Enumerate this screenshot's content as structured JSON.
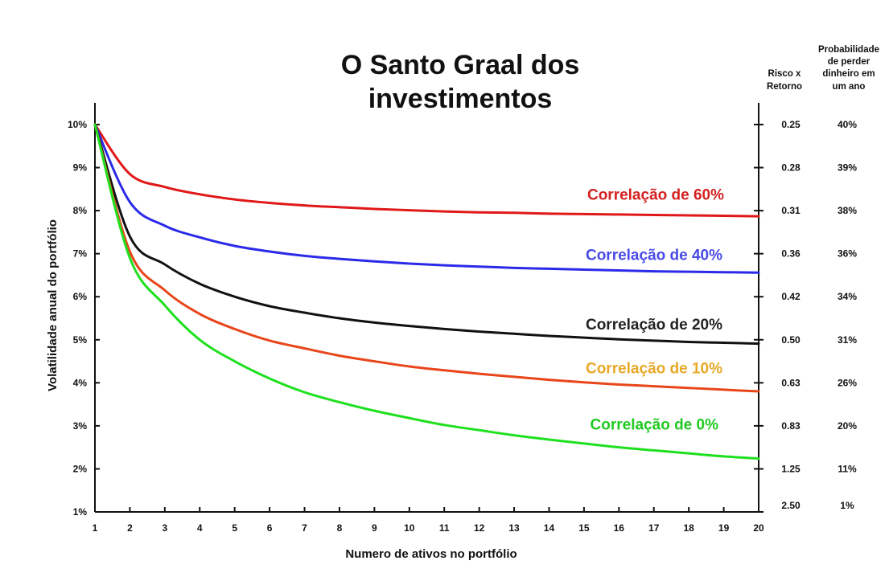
{
  "chart_data": {
    "type": "line",
    "title_lines": [
      "O Santo Graal dos",
      "investimentos"
    ],
    "xlabel": "Numero de ativos no portfólio",
    "ylabel": "Volatilidade anual do portfólio",
    "x": [
      1,
      2,
      3,
      4,
      5,
      6,
      7,
      8,
      9,
      10,
      11,
      12,
      13,
      14,
      15,
      16,
      17,
      18,
      19,
      20
    ],
    "x_tick_labels": [
      "1",
      "2",
      "3",
      "4",
      "5",
      "6",
      "7",
      "8",
      "9",
      "10",
      "11",
      "12",
      "13",
      "14",
      "15",
      "16",
      "17",
      "18",
      "19",
      "20"
    ],
    "xlim": [
      1,
      20
    ],
    "ylim": [
      1,
      10
    ],
    "y_ticks": [
      1,
      2,
      3,
      4,
      5,
      6,
      7,
      8,
      9,
      10
    ],
    "y_tick_labels": [
      "1%",
      "2%",
      "3%",
      "4%",
      "5%",
      "6%",
      "7%",
      "8%",
      "9%",
      "10%"
    ],
    "right_axes": {
      "risk_return_header": [
        "Risco x",
        "Retorno"
      ],
      "probability_header": [
        "Probabilidade",
        "de perder",
        "dinheiro em",
        "um ano"
      ],
      "risk_return_values": [
        "0.25",
        "0.28",
        "0.31",
        "0.36",
        "0.42",
        "0.50",
        "0.63",
        "0.83",
        "1.25",
        "2.50"
      ],
      "probability_values": [
        "40%",
        "39%",
        "38%",
        "36%",
        "34%",
        "31%",
        "26%",
        "20%",
        "11%",
        "1%"
      ]
    },
    "series": [
      {
        "name": "Correlação de 60%",
        "color": "#e01818",
        "label_color": "#d42020",
        "values": [
          10.0,
          8.85,
          8.55,
          8.38,
          8.26,
          8.18,
          8.12,
          8.08,
          8.04,
          8.01,
          7.98,
          7.96,
          7.95,
          7.93,
          7.92,
          7.91,
          7.9,
          7.89,
          7.88,
          7.87
        ]
      },
      {
        "name": "Correlação de 40%",
        "color": "#2a2ae8",
        "label_color": "#4a4ae6",
        "values": [
          10.0,
          8.2,
          7.65,
          7.38,
          7.18,
          7.05,
          6.95,
          6.88,
          6.82,
          6.77,
          6.73,
          6.7,
          6.67,
          6.65,
          6.63,
          6.61,
          6.59,
          6.58,
          6.57,
          6.56
        ]
      },
      {
        "name": "Correlação de 20%",
        "color": "#111111",
        "label_color": "#222222",
        "values": [
          10.0,
          7.4,
          6.75,
          6.3,
          6.0,
          5.78,
          5.63,
          5.5,
          5.4,
          5.32,
          5.25,
          5.19,
          5.14,
          5.09,
          5.05,
          5.01,
          4.98,
          4.95,
          4.93,
          4.91
        ]
      },
      {
        "name": "Correlação de 10%",
        "color": "#e8461a",
        "label_color": "#e8a92a",
        "values": [
          10.0,
          7.05,
          6.15,
          5.6,
          5.25,
          4.98,
          4.8,
          4.63,
          4.5,
          4.38,
          4.29,
          4.21,
          4.14,
          4.07,
          4.01,
          3.96,
          3.92,
          3.88,
          3.84,
          3.8
        ]
      },
      {
        "name": "Correlação de 0%",
        "color": "#1fe01f",
        "label_color": "#22c922",
        "values": [
          10.0,
          6.9,
          5.8,
          5.0,
          4.5,
          4.1,
          3.78,
          3.55,
          3.35,
          3.18,
          3.02,
          2.9,
          2.78,
          2.68,
          2.59,
          2.5,
          2.43,
          2.36,
          2.29,
          2.24
        ]
      }
    ],
    "grid": false,
    "legend": "inline labels near lines"
  }
}
